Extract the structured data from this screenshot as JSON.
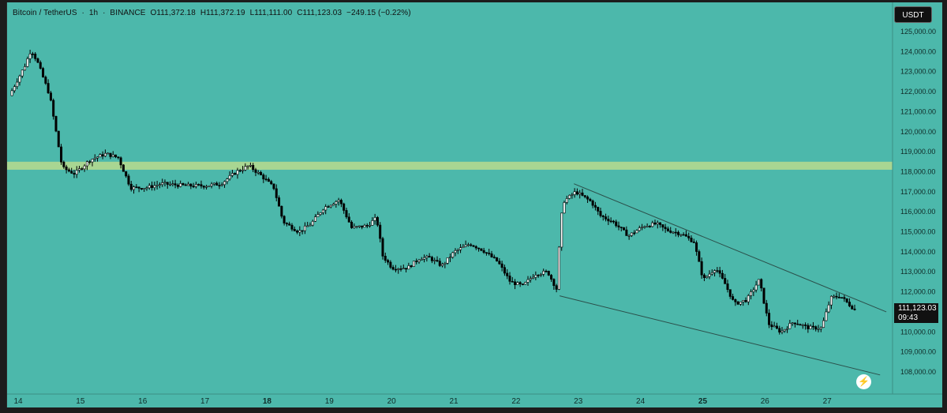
{
  "header": {
    "pair": "Bitcoin / TetherUS",
    "sep1": "·",
    "interval": "1h",
    "sep2": "·",
    "exchange": "BINANCE",
    "open": "O111,372.18",
    "high": "H111,372.19",
    "low": "L111,111.00",
    "close": "C111,123.03",
    "change": "−249.15 (−0.22%)"
  },
  "currency": "USDT",
  "price_tag": {
    "price": "111,123.03",
    "countdown": "09:43"
  },
  "icons": {
    "bolt": "lightning-icon"
  },
  "colors": {
    "background": "#4cb8ab",
    "up_body": "#ffffff",
    "down_body": "#000000",
    "wick": "#000000",
    "zone": "#c8e08a",
    "trendline": "#2b4f4a"
  },
  "chart_data": {
    "type": "candlestick",
    "title": "",
    "symbol": "BTCUSDT",
    "interval": "1h",
    "grid": false,
    "legend": "none",
    "x_axis": {
      "labels": [
        {
          "label": "14",
          "day": 14,
          "bold": false
        },
        {
          "label": "15",
          "day": 15,
          "bold": false
        },
        {
          "label": "16",
          "day": 16,
          "bold": false
        },
        {
          "label": "17",
          "day": 17,
          "bold": false
        },
        {
          "label": "18",
          "day": 18,
          "bold": true
        },
        {
          "label": "19",
          "day": 19,
          "bold": false
        },
        {
          "label": "20",
          "day": 20,
          "bold": false
        },
        {
          "label": "21",
          "day": 21,
          "bold": false
        },
        {
          "label": "22",
          "day": 22,
          "bold": false
        },
        {
          "label": "23",
          "day": 23,
          "bold": false
        },
        {
          "label": "24",
          "day": 24,
          "bold": false
        },
        {
          "label": "25",
          "day": 25,
          "bold": true
        },
        {
          "label": "26",
          "day": 26,
          "bold": false
        },
        {
          "label": "27",
          "day": 27,
          "bold": false
        }
      ]
    },
    "y_axis": {
      "min": 107500,
      "max": 125500,
      "ticks": [
        "108,000.00",
        "109,000.00",
        "110,000.00",
        "111,000.00",
        "112,000.00",
        "113,000.00",
        "114,000.00",
        "115,000.00",
        "116,000.00",
        "117,000.00",
        "118,000.00",
        "119,000.00",
        "120,000.00",
        "121,000.00",
        "122,000.00",
        "123,000.00",
        "124,000.00",
        "125,000.00"
      ],
      "tick_values": [
        108000,
        109000,
        110000,
        111000,
        112000,
        113000,
        114000,
        115000,
        116000,
        117000,
        118000,
        119000,
        120000,
        121000,
        122000,
        123000,
        124000,
        125000
      ]
    },
    "price_path": [
      [
        13.9,
        121800
      ],
      [
        14.15,
        123300
      ],
      [
        14.25,
        124100
      ],
      [
        14.35,
        123500
      ],
      [
        14.55,
        121800
      ],
      [
        14.75,
        118200
      ],
      [
        14.95,
        117900
      ],
      [
        15.2,
        118600
      ],
      [
        15.45,
        118900
      ],
      [
        15.65,
        118700
      ],
      [
        15.85,
        117200
      ],
      [
        16.1,
        117200
      ],
      [
        16.35,
        117400
      ],
      [
        16.75,
        117300
      ],
      [
        17.05,
        117300
      ],
      [
        17.3,
        117400
      ],
      [
        17.55,
        118000
      ],
      [
        17.75,
        118300
      ],
      [
        17.95,
        117800
      ],
      [
        18.15,
        117200
      ],
      [
        18.3,
        115500
      ],
      [
        18.55,
        115000
      ],
      [
        18.75,
        115400
      ],
      [
        18.95,
        116200
      ],
      [
        19.2,
        116600
      ],
      [
        19.4,
        115200
      ],
      [
        19.65,
        115300
      ],
      [
        19.8,
        115700
      ],
      [
        19.9,
        113800
      ],
      [
        20.05,
        113200
      ],
      [
        20.3,
        113200
      ],
      [
        20.5,
        113700
      ],
      [
        20.65,
        113700
      ],
      [
        20.85,
        113300
      ],
      [
        21.05,
        114000
      ],
      [
        21.3,
        114400
      ],
      [
        21.5,
        114100
      ],
      [
        21.75,
        113500
      ],
      [
        21.95,
        112500
      ],
      [
        22.15,
        112300
      ],
      [
        22.35,
        112900
      ],
      [
        22.55,
        113000
      ],
      [
        22.7,
        112100
      ],
      [
        22.75,
        115200
      ],
      [
        22.8,
        116500
      ],
      [
        23.0,
        117000
      ],
      [
        23.25,
        116500
      ],
      [
        23.4,
        115800
      ],
      [
        23.6,
        115500
      ],
      [
        23.85,
        114800
      ],
      [
        24.1,
        115300
      ],
      [
        24.3,
        115400
      ],
      [
        24.45,
        115100
      ],
      [
        24.7,
        114900
      ],
      [
        24.9,
        114500
      ],
      [
        25.05,
        112600
      ],
      [
        25.25,
        113200
      ],
      [
        25.4,
        112400
      ],
      [
        25.55,
        111400
      ],
      [
        25.75,
        111600
      ],
      [
        25.95,
        112600
      ],
      [
        26.1,
        110400
      ],
      [
        26.3,
        110000
      ],
      [
        26.5,
        110500
      ],
      [
        26.75,
        110200
      ],
      [
        26.95,
        110200
      ],
      [
        27.1,
        111700
      ],
      [
        27.25,
        111800
      ],
      [
        27.4,
        111350
      ],
      [
        27.48,
        111123
      ]
    ],
    "last_price": 111123.03,
    "annotations": [
      {
        "type": "zone",
        "y_from": 118100,
        "y_to": 118500,
        "label": ""
      },
      {
        "type": "trendline",
        "from": [
          22.93,
          117400
        ],
        "to": [
          27.95,
          111000
        ]
      },
      {
        "type": "trendline",
        "from": [
          22.7,
          111800
        ],
        "to": [
          27.85,
          107850
        ]
      }
    ]
  }
}
